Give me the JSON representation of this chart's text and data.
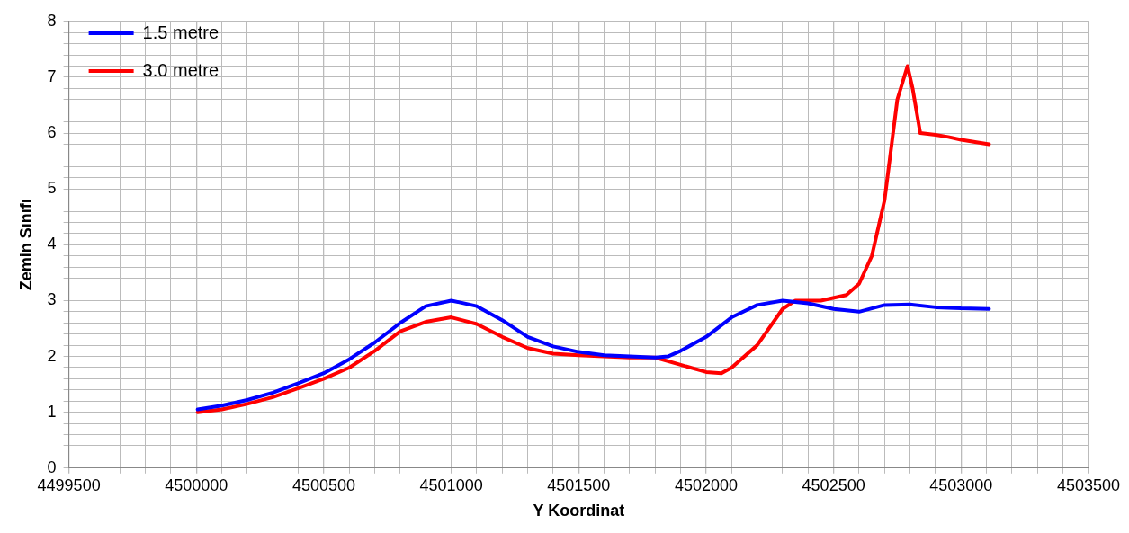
{
  "chart_data": {
    "type": "line",
    "xlabel": "Y Koordinat",
    "ylabel": "Zemin Sınıfı",
    "xlim": [
      4499500,
      4503500
    ],
    "xticks": [
      4499500,
      {
        "value": 4499600,
        "label": null
      },
      {
        "value": 4499700,
        "label": null
      },
      {
        "value": 4499800,
        "label": null
      },
      {
        "value": 4499900,
        "label": null
      },
      4500000,
      {
        "value": 4500100,
        "label": null
      },
      {
        "value": 4500200,
        "label": null
      },
      {
        "value": 4500300,
        "label": null
      },
      {
        "value": 4500400,
        "label": null
      },
      4500500,
      {
        "value": 4500600,
        "label": null
      },
      {
        "value": 4500700,
        "label": null
      },
      {
        "value": 4500800,
        "label": null
      },
      {
        "value": 4500900,
        "label": null
      },
      4501000,
      {
        "value": 4501100,
        "label": null
      },
      {
        "value": 4501200,
        "label": null
      },
      {
        "value": 4501300,
        "label": null
      },
      {
        "value": 4501400,
        "label": null
      },
      4501500,
      {
        "value": 4501600,
        "label": null
      },
      {
        "value": 4501700,
        "label": null
      },
      {
        "value": 4501800,
        "label": null
      },
      {
        "value": 4501900,
        "label": null
      },
      4502000,
      {
        "value": 4502100,
        "label": null
      },
      {
        "value": 4502200,
        "label": null
      },
      {
        "value": 4502300,
        "label": null
      },
      {
        "value": 4502400,
        "label": null
      },
      4502500,
      {
        "value": 4502600,
        "label": null
      },
      {
        "value": 4502700,
        "label": null
      },
      {
        "value": 4502800,
        "label": null
      },
      {
        "value": 4502900,
        "label": null
      },
      4503000,
      {
        "value": 4503100,
        "label": null
      },
      {
        "value": 4503200,
        "label": null
      },
      {
        "value": 4503300,
        "label": null
      },
      {
        "value": 4503400,
        "label": null
      },
      4503500
    ],
    "ylim": [
      0,
      8
    ],
    "yticks": [
      0,
      {
        "value": 0.2,
        "label": null
      },
      {
        "value": 0.4,
        "label": null
      },
      {
        "value": 0.6,
        "label": null
      },
      {
        "value": 0.8,
        "label": null
      },
      1,
      {
        "value": 1.2,
        "label": null
      },
      {
        "value": 1.4,
        "label": null
      },
      {
        "value": 1.6,
        "label": null
      },
      {
        "value": 1.8,
        "label": null
      },
      2,
      {
        "value": 2.2,
        "label": null
      },
      {
        "value": 2.4,
        "label": null
      },
      {
        "value": 2.6,
        "label": null
      },
      {
        "value": 2.8,
        "label": null
      },
      3,
      {
        "value": 3.2,
        "label": null
      },
      {
        "value": 3.4,
        "label": null
      },
      {
        "value": 3.6,
        "label": null
      },
      {
        "value": 3.8,
        "label": null
      },
      4,
      {
        "value": 4.2,
        "label": null
      },
      {
        "value": 4.4,
        "label": null
      },
      {
        "value": 4.6,
        "label": null
      },
      {
        "value": 4.8,
        "label": null
      },
      5,
      {
        "value": 5.2,
        "label": null
      },
      {
        "value": 5.4,
        "label": null
      },
      {
        "value": 5.6,
        "label": null
      },
      {
        "value": 5.8,
        "label": null
      },
      6,
      {
        "value": 6.2,
        "label": null
      },
      {
        "value": 6.4,
        "label": null
      },
      {
        "value": 6.6,
        "label": null
      },
      {
        "value": 6.8,
        "label": null
      },
      7,
      {
        "value": 7.2,
        "label": null
      },
      {
        "value": 7.4,
        "label": null
      },
      {
        "value": 7.6,
        "label": null
      },
      {
        "value": 7.8,
        "label": null
      },
      8
    ],
    "grid": true,
    "legend": "top left",
    "marker": "none",
    "line_style": "solid",
    "series": [
      {
        "name": "1.5 metre",
        "color": "#0000ff",
        "x": [
          4500005,
          4500100,
          4500200,
          4500300,
          4500400,
          4500500,
          4500600,
          4500700,
          4500800,
          4500900,
          4501000,
          4501100,
          4501200,
          4501300,
          4501400,
          4501500,
          4501600,
          4501700,
          4501800,
          4501850,
          4501900,
          4502000,
          4502100,
          4502200,
          4502300,
          4502400,
          4502500,
          4502600,
          4502700,
          4502800,
          4502900,
          4503000,
          4503110
        ],
        "values": [
          1.05,
          1.12,
          1.22,
          1.35,
          1.52,
          1.7,
          1.95,
          2.25,
          2.6,
          2.9,
          3.0,
          2.9,
          2.65,
          2.35,
          2.18,
          2.08,
          2.02,
          2.0,
          1.98,
          2.0,
          2.1,
          2.35,
          2.7,
          2.92,
          3.0,
          2.95,
          2.85,
          2.8,
          2.92,
          2.93,
          2.88,
          2.86,
          2.85
        ]
      },
      {
        "name": "3.0 metre",
        "color": "#ff0000",
        "x": [
          4500005,
          4500100,
          4500200,
          4500300,
          4500400,
          4500500,
          4500600,
          4500700,
          4500800,
          4500900,
          4501000,
          4501100,
          4501200,
          4501300,
          4501400,
          4501500,
          4501600,
          4501700,
          4501800,
          4501900,
          4502000,
          4502060,
          4502100,
          4502200,
          4502300,
          4502350,
          4502450,
          4502550,
          4502600,
          4502650,
          4502700,
          4502750,
          4502790,
          4502810,
          4502840,
          4502900,
          4502950,
          4503000,
          4503110
        ],
        "values": [
          1.0,
          1.05,
          1.15,
          1.27,
          1.43,
          1.6,
          1.8,
          2.1,
          2.45,
          2.62,
          2.7,
          2.58,
          2.35,
          2.15,
          2.05,
          2.02,
          2.0,
          1.98,
          1.98,
          1.85,
          1.72,
          1.7,
          1.8,
          2.2,
          2.85,
          3.0,
          3.0,
          3.1,
          3.3,
          3.8,
          4.8,
          6.6,
          7.2,
          6.8,
          6.0,
          5.97,
          5.93,
          5.88,
          5.8
        ]
      }
    ]
  }
}
